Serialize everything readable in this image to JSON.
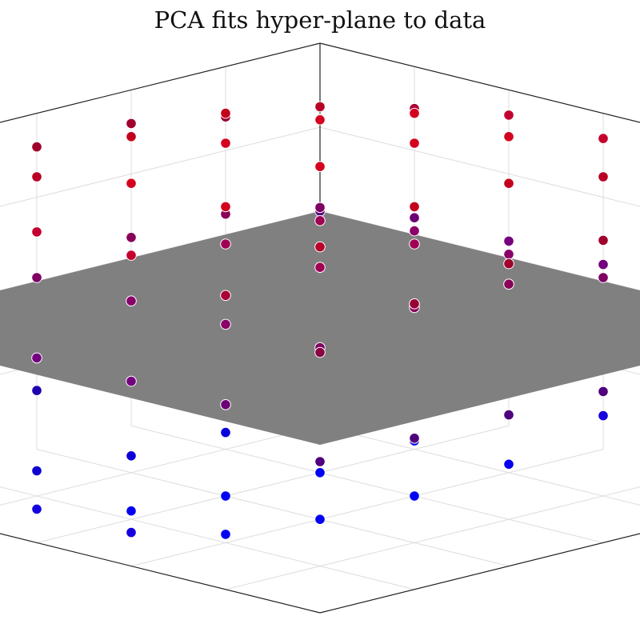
{
  "chart_data": {
    "type": "scatter",
    "projection": "3d",
    "title": "PCA fits hyper-plane to data",
    "xlabel": "",
    "ylabel": "",
    "zlabel": "",
    "grid": true,
    "ticks_visible": false,
    "surface": {
      "name": "plane",
      "z": 0,
      "x_range": [
        -1,
        1
      ],
      "y_range": [
        -1,
        1
      ],
      "color": "#808080"
    },
    "marker_edge_color": "#ffffff",
    "colors": {
      "positive_z": "#dc0020",
      "negative_z": "#0000ff"
    },
    "series": [
      {
        "values": [
          {
            "x": 1.0,
            "y": 1.0,
            "z": 0.0
          },
          {
            "x": 1.0,
            "y": 0.6,
            "z": -0.1
          },
          {
            "x": 1.0,
            "y": 0.2,
            "z": -0.1
          },
          {
            "x": 1.0,
            "y": -0.2,
            "z": -0.1
          },
          {
            "x": 1.0,
            "y": -0.6,
            "z": -0.1
          },
          {
            "x": 1.0,
            "y": -1.0,
            "z": -0.1
          },
          {
            "x": 0.6,
            "y": 1.0,
            "z": 0.1
          },
          {
            "x": 0.6,
            "y": 0.6,
            "z": 0.3
          },
          {
            "x": 0.6,
            "y": 0.2,
            "z": 0.4
          },
          {
            "x": 0.6,
            "y": -0.2,
            "z": 0.4
          },
          {
            "x": 0.6,
            "y": -0.6,
            "z": 0.3
          },
          {
            "x": 0.6,
            "y": -1.0,
            "z": 0.1
          },
          {
            "x": 0.2,
            "y": 1.0,
            "z": 0.1
          },
          {
            "x": 0.2,
            "y": 0.6,
            "z": 0.3
          },
          {
            "x": 0.2,
            "y": 0.2,
            "z": 0.5
          },
          {
            "x": 0.2,
            "y": -0.2,
            "z": 0.5
          },
          {
            "x": 0.2,
            "y": -0.6,
            "z": 0.3
          },
          {
            "x": 0.2,
            "y": -1.0,
            "z": 0.1
          },
          {
            "x": -0.2,
            "y": 1.0,
            "z": 0.1
          },
          {
            "x": -0.2,
            "y": 0.6,
            "z": 0.3
          },
          {
            "x": -0.2,
            "y": 0.2,
            "z": 0.5
          },
          {
            "x": -0.2,
            "y": -0.2,
            "z": 0.5
          },
          {
            "x": -0.2,
            "y": -0.6,
            "z": 0.3
          },
          {
            "x": -0.2,
            "y": -1.0,
            "z": 0.1
          },
          {
            "x": -0.6,
            "y": 1.0,
            "z": 0.1
          },
          {
            "x": -0.6,
            "y": 0.6,
            "z": 0.3
          },
          {
            "x": -0.6,
            "y": 0.2,
            "z": 0.4
          },
          {
            "x": -0.6,
            "y": -0.2,
            "z": 0.4
          },
          {
            "x": -0.6,
            "y": -0.6,
            "z": 0.3
          },
          {
            "x": -0.6,
            "y": -1.0,
            "z": 0.1
          },
          {
            "x": -1.0,
            "y": 1.0,
            "z": 0.0
          },
          {
            "x": -1.0,
            "y": 0.6,
            "z": -0.1
          },
          {
            "x": -1.0,
            "y": 0.2,
            "z": -0.1
          },
          {
            "x": -1.0,
            "y": -0.2,
            "z": -0.1
          },
          {
            "x": -1.0,
            "y": -0.6,
            "z": -0.1
          },
          {
            "x": -1.0,
            "y": -1.0,
            "z": -0.1
          },
          {
            "x": 1.0,
            "y": 1.0,
            "z": 0.55
          },
          {
            "x": 1.0,
            "y": 0.6,
            "z": 0.7
          },
          {
            "x": 1.0,
            "y": 0.2,
            "z": 0.8
          },
          {
            "x": 1.0,
            "y": -0.2,
            "z": 0.8
          },
          {
            "x": 1.0,
            "y": -0.6,
            "z": 0.7
          },
          {
            "x": 1.0,
            "y": -1.0,
            "z": 0.55
          },
          {
            "x": 0.6,
            "y": 1.0,
            "z": 0.75
          },
          {
            "x": 0.6,
            "y": 0.6,
            "z": 0.9
          },
          {
            "x": 0.6,
            "y": 0.2,
            "z": 1.0
          },
          {
            "x": 0.6,
            "y": -0.2,
            "z": 1.0
          },
          {
            "x": 0.6,
            "y": -0.6,
            "z": 0.9
          },
          {
            "x": 0.6,
            "y": -1.0,
            "z": 0.75
          },
          {
            "x": 0.2,
            "y": 1.0,
            "z": 0.85
          },
          {
            "x": 0.2,
            "y": 0.6,
            "z": 1.0
          },
          {
            "x": 0.2,
            "y": 0.2,
            "z": 1.1
          },
          {
            "x": 0.2,
            "y": -0.2,
            "z": 1.1
          },
          {
            "x": 0.2,
            "y": -0.6,
            "z": 1.0
          },
          {
            "x": 0.2,
            "y": -1.0,
            "z": 0.85
          },
          {
            "x": -0.2,
            "y": 1.0,
            "z": 0.85
          },
          {
            "x": -0.2,
            "y": 0.6,
            "z": 1.0
          },
          {
            "x": -0.2,
            "y": 0.2,
            "z": 1.1
          },
          {
            "x": -0.2,
            "y": -0.2,
            "z": 1.1
          },
          {
            "x": -0.2,
            "y": -0.6,
            "z": 1.0
          },
          {
            "x": -0.2,
            "y": -1.0,
            "z": 0.85
          },
          {
            "x": -0.6,
            "y": 1.0,
            "z": 0.75
          },
          {
            "x": -0.6,
            "y": 0.6,
            "z": 0.9
          },
          {
            "x": -0.6,
            "y": 0.2,
            "z": 1.0
          },
          {
            "x": -0.6,
            "y": -0.2,
            "z": 1.0
          },
          {
            "x": -0.6,
            "y": -0.6,
            "z": 0.9
          },
          {
            "x": -0.6,
            "y": -1.0,
            "z": 0.75
          },
          {
            "x": -1.0,
            "y": 1.0,
            "z": 0.55
          },
          {
            "x": -1.0,
            "y": 0.6,
            "z": 0.7
          },
          {
            "x": -1.0,
            "y": 0.2,
            "z": 0.8
          },
          {
            "x": -1.0,
            "y": -0.2,
            "z": 0.8
          },
          {
            "x": -1.0,
            "y": -0.6,
            "z": 0.7
          },
          {
            "x": -1.0,
            "y": -1.0,
            "z": 0.55
          },
          {
            "x": 1.0,
            "y": 1.0,
            "z": -0.5
          },
          {
            "x": 1.0,
            "y": 0.6,
            "z": -0.6
          },
          {
            "x": 1.0,
            "y": 0.2,
            "z": -0.65
          },
          {
            "x": 1.0,
            "y": -0.2,
            "z": -0.65
          },
          {
            "x": 1.0,
            "y": -0.6,
            "z": -0.6
          },
          {
            "x": 1.0,
            "y": -1.0,
            "z": -0.5
          },
          {
            "x": 0.6,
            "y": 1.0,
            "z": -0.7
          },
          {
            "x": 0.6,
            "y": 0.6,
            "z": -0.85
          },
          {
            "x": 0.6,
            "y": 0.2,
            "z": -0.9
          },
          {
            "x": 0.6,
            "y": -0.2,
            "z": -0.9
          },
          {
            "x": 0.6,
            "y": -0.6,
            "z": -0.85
          },
          {
            "x": 0.6,
            "y": -1.0,
            "z": -0.7
          },
          {
            "x": 0.2,
            "y": 1.0,
            "z": -0.8
          },
          {
            "x": 0.2,
            "y": 0.6,
            "z": -0.95
          },
          {
            "x": 0.2,
            "y": 0.2,
            "z": -1.0
          },
          {
            "x": 0.2,
            "y": -0.2,
            "z": -1.0
          },
          {
            "x": 0.2,
            "y": -0.6,
            "z": -0.95
          },
          {
            "x": 0.2,
            "y": -1.0,
            "z": -0.8
          },
          {
            "x": -0.2,
            "y": 1.0,
            "z": -0.8
          },
          {
            "x": -0.2,
            "y": 0.6,
            "z": -0.95
          },
          {
            "x": -0.2,
            "y": 0.2,
            "z": -1.0
          },
          {
            "x": -0.2,
            "y": -0.2,
            "z": -1.0
          },
          {
            "x": -0.2,
            "y": -0.6,
            "z": -0.95
          },
          {
            "x": -0.2,
            "y": -1.0,
            "z": -0.8
          }
        ]
      }
    ]
  }
}
